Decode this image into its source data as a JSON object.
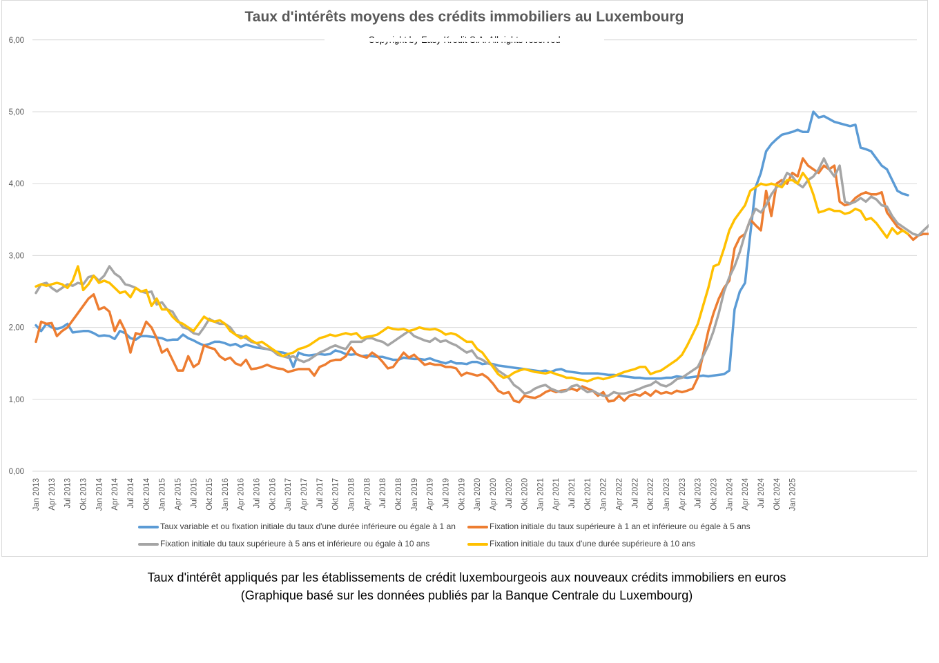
{
  "title": "Taux d'intérêts moyens des crédits immobiliers au Luxembourg",
  "subtitle": "Copyright by Easy Kredit S.A. All rights reserved",
  "caption_line1": "Taux d'intérêt appliqués par les établissements de crédit luxembourgeois aux nouveaux crédits immobiliers en euros",
  "caption_line2": "(Graphique basé sur les données publiés par la Banque Centrale du Luxembourg)",
  "chart_data": {
    "type": "line",
    "title": "Taux d'intérêts moyens des crédits immobiliers au Luxembourg",
    "xlabel": "",
    "ylabel": "",
    "ylim": [
      0,
      6
    ],
    "yticks": [
      "0,00",
      "1,00",
      "2,00",
      "3,00",
      "4,00",
      "5,00",
      "6,00"
    ],
    "grid": true,
    "legend_position": "bottom",
    "x_start": "Jan 2013",
    "x_end": "Apr 2025",
    "x_tick_labels": [
      "Jan 2013",
      "Apr 2013",
      "Jul 2013",
      "Okt 2013",
      "Jan 2014",
      "Apr 2014",
      "Jul 2014",
      "Okt 2014",
      "Jan 2015",
      "Apr 2015",
      "Jul 2015",
      "Okt 2015",
      "Jan 2016",
      "Apr 2016",
      "Jul 2016",
      "Okt 2016",
      "Jan 2017",
      "Apr 2017",
      "Jul 2017",
      "Okt 2017",
      "Jan 2018",
      "Apr 2018",
      "Jul 2018",
      "Okt 2018",
      "Jan 2019",
      "Apr 2019",
      "Jul 2019",
      "Okt 2019",
      "Jan 2020",
      "Apr 2020",
      "Jul 2020",
      "Okt 2020",
      "Jan 2021",
      "Apr 2021",
      "Jul 2021",
      "Okt 2021",
      "Jan 2022",
      "Apr 2022",
      "Jul 2022",
      "Okt 2022",
      "Jan 2023",
      "Apr 2023",
      "Jul 2023",
      "Okt 2023",
      "Jan 2024",
      "Apr 2024",
      "Jul 2024",
      "Okt 2024",
      "Jan 2025"
    ],
    "series": [
      {
        "name": "Taux variable et ou fixation initiale du taux d'une durée inférieure ou égale à 1 an",
        "color": "#5b9bd5",
        "values": [
          2.03,
          1.95,
          2.05,
          2.0,
          1.98,
          2.0,
          2.05,
          1.93,
          1.94,
          1.95,
          1.95,
          1.92,
          1.88,
          1.89,
          1.88,
          1.84,
          1.95,
          1.92,
          1.85,
          1.83,
          1.88,
          1.88,
          1.87,
          1.86,
          1.85,
          1.82,
          1.83,
          1.83,
          1.9,
          1.85,
          1.82,
          1.78,
          1.75,
          1.77,
          1.8,
          1.8,
          1.78,
          1.75,
          1.77,
          1.73,
          1.76,
          1.74,
          1.72,
          1.71,
          1.7,
          1.68,
          1.66,
          1.65,
          1.63,
          1.45,
          1.65,
          1.62,
          1.61,
          1.62,
          1.63,
          1.62,
          1.63,
          1.68,
          1.66,
          1.63,
          1.62,
          1.63,
          1.6,
          1.61,
          1.6,
          1.59,
          1.59,
          1.57,
          1.55,
          1.55,
          1.58,
          1.57,
          1.56,
          1.56,
          1.55,
          1.57,
          1.54,
          1.52,
          1.5,
          1.53,
          1.5,
          1.5,
          1.49,
          1.52,
          1.52,
          1.49,
          1.5,
          1.49,
          1.47,
          1.46,
          1.45,
          1.44,
          1.43,
          1.42,
          1.41,
          1.4,
          1.39,
          1.4,
          1.38,
          1.41,
          1.42,
          1.39,
          1.38,
          1.37,
          1.36,
          1.36,
          1.36,
          1.36,
          1.35,
          1.34,
          1.34,
          1.33,
          1.32,
          1.31,
          1.3,
          1.3,
          1.29,
          1.29,
          1.29,
          1.29,
          1.3,
          1.3,
          1.32,
          1.31,
          1.3,
          1.31,
          1.32,
          1.33,
          1.32,
          1.33,
          1.34,
          1.35,
          1.4,
          2.25,
          2.5,
          2.62,
          3.3,
          3.95,
          4.15,
          4.45,
          4.55,
          4.62,
          4.68,
          4.7,
          4.72,
          4.75,
          4.72,
          4.72,
          5.0,
          4.92,
          4.94,
          4.9,
          4.86,
          4.84,
          4.82,
          4.8,
          4.82,
          4.5,
          4.48,
          4.45,
          4.35,
          4.25,
          4.2,
          4.05,
          3.9,
          3.86,
          3.84
        ]
      },
      {
        "name": "Fixation initiale du taux supérieure à 1 an et inférieure ou égale à 5 ans",
        "color": "#ed7d31",
        "values": [
          1.8,
          2.08,
          2.05,
          2.06,
          1.88,
          1.95,
          2.0,
          2.1,
          2.2,
          2.3,
          2.4,
          2.46,
          2.25,
          2.28,
          2.22,
          1.95,
          2.1,
          1.95,
          1.65,
          1.92,
          1.9,
          2.08,
          2.0,
          1.85,
          1.65,
          1.7,
          1.55,
          1.4,
          1.4,
          1.6,
          1.45,
          1.5,
          1.75,
          1.72,
          1.7,
          1.6,
          1.55,
          1.58,
          1.5,
          1.47,
          1.55,
          1.42,
          1.43,
          1.45,
          1.48,
          1.45,
          1.43,
          1.42,
          1.38,
          1.4,
          1.42,
          1.42,
          1.42,
          1.33,
          1.45,
          1.48,
          1.53,
          1.55,
          1.55,
          1.6,
          1.72,
          1.63,
          1.6,
          1.58,
          1.65,
          1.6,
          1.52,
          1.43,
          1.45,
          1.55,
          1.65,
          1.58,
          1.62,
          1.55,
          1.48,
          1.5,
          1.48,
          1.48,
          1.45,
          1.45,
          1.43,
          1.33,
          1.37,
          1.35,
          1.33,
          1.35,
          1.3,
          1.22,
          1.12,
          1.08,
          1.1,
          0.98,
          0.96,
          1.05,
          1.03,
          1.02,
          1.05,
          1.1,
          1.13,
          1.1,
          1.12,
          1.13,
          1.15,
          1.12,
          1.18,
          1.15,
          1.12,
          1.05,
          1.1,
          0.97,
          0.98,
          1.05,
          0.98,
          1.05,
          1.07,
          1.05,
          1.1,
          1.05,
          1.12,
          1.08,
          1.1,
          1.08,
          1.12,
          1.1,
          1.12,
          1.15,
          1.3,
          1.62,
          1.95,
          2.2,
          2.4,
          2.55,
          2.65,
          3.1,
          3.25,
          3.3,
          3.5,
          3.42,
          3.35,
          3.9,
          3.55,
          4.0,
          4.05,
          4.0,
          4.15,
          4.1,
          4.35,
          4.25,
          4.2,
          4.15,
          4.25,
          4.2,
          4.25,
          3.75,
          3.7,
          3.72,
          3.8,
          3.85,
          3.88,
          3.85,
          3.85,
          3.88,
          3.6,
          3.5,
          3.4,
          3.35,
          3.3,
          3.22,
          3.28,
          3.3,
          3.3
        ]
      },
      {
        "name": "Fixation initiale du taux supérieure à 5 ans et inférieure ou égale à 10 ans",
        "color": "#a5a5a5",
        "values": [
          2.48,
          2.6,
          2.62,
          2.55,
          2.5,
          2.55,
          2.6,
          2.58,
          2.62,
          2.6,
          2.7,
          2.72,
          2.65,
          2.72,
          2.85,
          2.75,
          2.7,
          2.6,
          2.58,
          2.55,
          2.5,
          2.48,
          2.5,
          2.32,
          2.35,
          2.25,
          2.22,
          2.1,
          2.0,
          1.98,
          1.92,
          1.9,
          2.0,
          2.12,
          2.08,
          2.05,
          2.05,
          2.0,
          1.9,
          1.88,
          1.85,
          1.8,
          1.78,
          1.72,
          1.7,
          1.68,
          1.62,
          1.6,
          1.58,
          1.6,
          1.55,
          1.52,
          1.55,
          1.6,
          1.65,
          1.68,
          1.72,
          1.75,
          1.72,
          1.7,
          1.8,
          1.8,
          1.8,
          1.85,
          1.85,
          1.82,
          1.8,
          1.75,
          1.8,
          1.85,
          1.9,
          1.95,
          1.88,
          1.85,
          1.82,
          1.8,
          1.85,
          1.8,
          1.82,
          1.78,
          1.75,
          1.7,
          1.65,
          1.68,
          1.58,
          1.55,
          1.5,
          1.48,
          1.4,
          1.35,
          1.3,
          1.2,
          1.15,
          1.08,
          1.1,
          1.15,
          1.18,
          1.2,
          1.15,
          1.12,
          1.1,
          1.12,
          1.18,
          1.2,
          1.15,
          1.1,
          1.12,
          1.08,
          1.05,
          1.05,
          1.1,
          1.08,
          1.08,
          1.1,
          1.12,
          1.15,
          1.18,
          1.2,
          1.25,
          1.2,
          1.18,
          1.22,
          1.28,
          1.3,
          1.35,
          1.4,
          1.45,
          1.6,
          1.75,
          1.95,
          2.2,
          2.5,
          2.7,
          2.85,
          3.05,
          3.3,
          3.5,
          3.65,
          3.6,
          3.7,
          3.85,
          3.95,
          4.0,
          4.15,
          4.1,
          4.0,
          3.95,
          4.05,
          4.1,
          4.2,
          4.35,
          4.2,
          4.1,
          4.25,
          3.75,
          3.72,
          3.75,
          3.8,
          3.75,
          3.82,
          3.78,
          3.7,
          3.68,
          3.55,
          3.45,
          3.4,
          3.35,
          3.3,
          3.28,
          3.35,
          3.42
        ]
      },
      {
        "name": "Fixation initiale du taux d'une durée supérieure à 10 ans",
        "color": "#ffc000",
        "values": [
          2.57,
          2.6,
          2.58,
          2.6,
          2.62,
          2.6,
          2.55,
          2.65,
          2.85,
          2.52,
          2.6,
          2.72,
          2.62,
          2.65,
          2.62,
          2.55,
          2.48,
          2.5,
          2.42,
          2.55,
          2.5,
          2.52,
          2.3,
          2.4,
          2.25,
          2.25,
          2.15,
          2.08,
          2.05,
          2.0,
          1.95,
          2.05,
          2.15,
          2.1,
          2.08,
          2.1,
          2.05,
          1.95,
          1.9,
          1.85,
          1.88,
          1.82,
          1.78,
          1.8,
          1.75,
          1.7,
          1.65,
          1.6,
          1.63,
          1.65,
          1.7,
          1.72,
          1.75,
          1.8,
          1.85,
          1.87,
          1.9,
          1.88,
          1.9,
          1.92,
          1.9,
          1.92,
          1.85,
          1.87,
          1.88,
          1.9,
          1.95,
          2.0,
          1.98,
          1.97,
          1.98,
          1.95,
          1.97,
          2.0,
          1.98,
          1.97,
          1.98,
          1.95,
          1.9,
          1.92,
          1.9,
          1.85,
          1.8,
          1.8,
          1.7,
          1.65,
          1.55,
          1.45,
          1.35,
          1.3,
          1.32,
          1.37,
          1.4,
          1.42,
          1.4,
          1.38,
          1.37,
          1.36,
          1.38,
          1.35,
          1.33,
          1.3,
          1.3,
          1.28,
          1.27,
          1.25,
          1.28,
          1.3,
          1.28,
          1.3,
          1.32,
          1.35,
          1.38,
          1.4,
          1.42,
          1.45,
          1.45,
          1.35,
          1.38,
          1.4,
          1.45,
          1.5,
          1.55,
          1.62,
          1.75,
          1.9,
          2.05,
          2.3,
          2.55,
          2.85,
          2.88,
          3.1,
          3.35,
          3.5,
          3.6,
          3.7,
          3.9,
          3.95,
          4.0,
          3.98,
          4.0,
          3.98,
          3.95,
          4.05,
          4.05,
          4.0,
          4.15,
          4.05,
          3.85,
          3.6,
          3.62,
          3.65,
          3.62,
          3.62,
          3.58,
          3.6,
          3.65,
          3.62,
          3.5,
          3.52,
          3.45,
          3.35,
          3.25,
          3.38,
          3.3,
          3.35,
          3.3
        ]
      }
    ]
  }
}
